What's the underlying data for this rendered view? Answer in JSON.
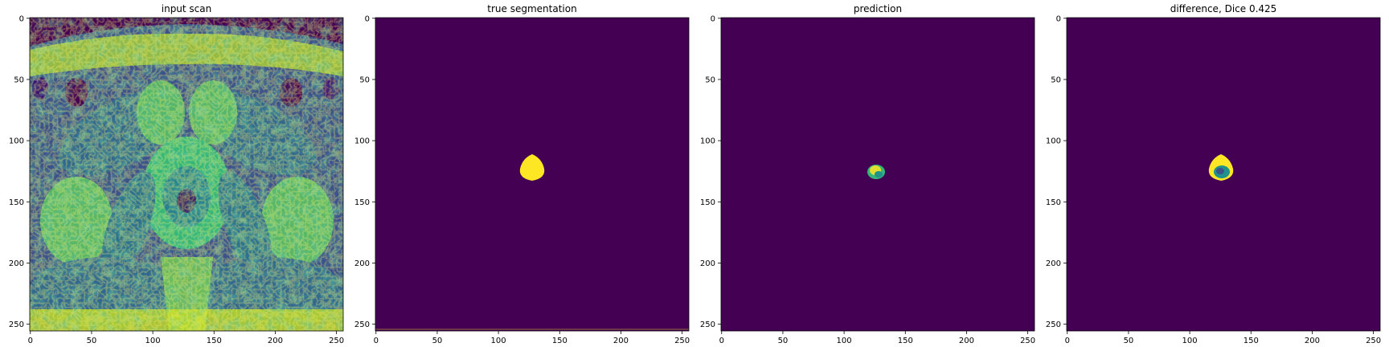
{
  "figure": {
    "panels": [
      {
        "title": "input scan",
        "image": "MRI axial pelvis scan (viridis colormap)"
      },
      {
        "title": "true segmentation",
        "image": "binary mask, single yellow blob"
      },
      {
        "title": "prediction",
        "image": "predicted mask, small blob"
      },
      {
        "title": "difference, Dice 0.425",
        "image": "difference mask"
      }
    ],
    "x_ticks": [
      "0",
      "50",
      "100",
      "150",
      "200",
      "250"
    ],
    "y_ticks": [
      "0",
      "50",
      "100",
      "150",
      "200",
      "250"
    ],
    "image_size": [
      256,
      256
    ],
    "colormap": "viridis",
    "colors": {
      "background": "#440154",
      "mask": "#fde725",
      "mid": "#21918c"
    }
  }
}
